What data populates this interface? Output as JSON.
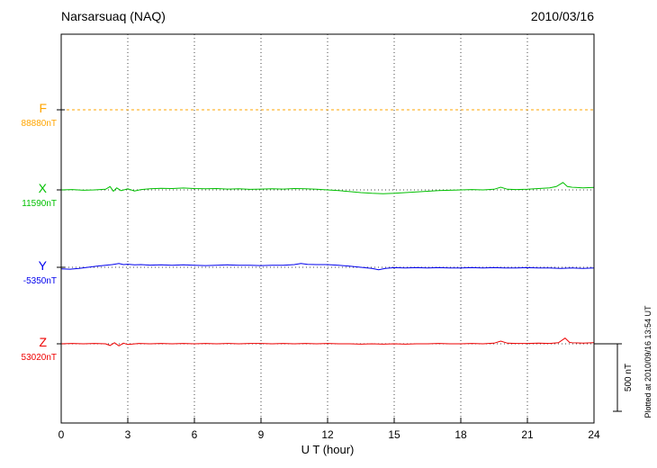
{
  "header": {
    "title": "Narsarsuaq (NAQ)",
    "date": "2010/03/16"
  },
  "chart_data": {
    "type": "line",
    "title": "Narsarsuaq (NAQ)",
    "date": "2010/03/16",
    "xlabel": "U T (hour)",
    "ylabel": "",
    "xlim": [
      0,
      24
    ],
    "xticks": [
      0,
      3,
      6,
      9,
      12,
      15,
      18,
      21,
      24
    ],
    "grid": "vertical-dotted",
    "scale_bar": {
      "label": "500 nT",
      "value_nT": 500
    },
    "plotted_note": "Plotted at 2010/09/16 13:54 UT",
    "series": [
      {
        "name": "F",
        "baseline": "88880nT",
        "color": "#FFA500",
        "line": "dotted",
        "points": [
          [
            0,
            0
          ],
          [
            24,
            0
          ]
        ]
      },
      {
        "name": "X",
        "baseline": "11590nT",
        "color": "#00C000",
        "line": "solid",
        "points": [
          [
            0,
            0
          ],
          [
            0.5,
            3
          ],
          [
            1,
            -3
          ],
          [
            1.5,
            0
          ],
          [
            2,
            5
          ],
          [
            2.2,
            25
          ],
          [
            2.35,
            -10
          ],
          [
            2.5,
            15
          ],
          [
            2.7,
            -5
          ],
          [
            3,
            8
          ],
          [
            3.3,
            -8
          ],
          [
            3.6,
            3
          ],
          [
            4,
            8
          ],
          [
            4.5,
            12
          ],
          [
            5,
            10
          ],
          [
            5.5,
            14
          ],
          [
            6,
            10
          ],
          [
            6.5,
            8
          ],
          [
            7,
            10
          ],
          [
            7.5,
            6
          ],
          [
            8,
            8
          ],
          [
            8.5,
            4
          ],
          [
            9,
            6
          ],
          [
            9.5,
            8
          ],
          [
            10,
            6
          ],
          [
            10.5,
            10
          ],
          [
            11,
            8
          ],
          [
            11.5,
            5
          ],
          [
            12,
            0
          ],
          [
            12.5,
            -5
          ],
          [
            13,
            -13
          ],
          [
            13.5,
            -20
          ],
          [
            14,
            -25
          ],
          [
            14.5,
            -28
          ],
          [
            15,
            -25
          ],
          [
            15.5,
            -20
          ],
          [
            16,
            -15
          ],
          [
            16.5,
            -10
          ],
          [
            17,
            -5
          ],
          [
            17.5,
            -3
          ],
          [
            18,
            0
          ],
          [
            18.5,
            3
          ],
          [
            19,
            0
          ],
          [
            19.5,
            5
          ],
          [
            19.8,
            20
          ],
          [
            20.1,
            5
          ],
          [
            20.5,
            3
          ],
          [
            21,
            5
          ],
          [
            21.5,
            10
          ],
          [
            22,
            15
          ],
          [
            22.3,
            25
          ],
          [
            22.6,
            55
          ],
          [
            22.8,
            25
          ],
          [
            23,
            20
          ],
          [
            23.5,
            15
          ],
          [
            24,
            18
          ]
        ]
      },
      {
        "name": "Y",
        "baseline": "-5350nT",
        "color": "#0000EE",
        "line": "solid",
        "points": [
          [
            0,
            -12
          ],
          [
            0.4,
            -14
          ],
          [
            0.8,
            -8
          ],
          [
            1.2,
            0
          ],
          [
            1.6,
            8
          ],
          [
            2,
            15
          ],
          [
            2.3,
            20
          ],
          [
            2.6,
            28
          ],
          [
            2.8,
            20
          ],
          [
            3,
            23
          ],
          [
            3.3,
            18
          ],
          [
            3.6,
            20
          ],
          [
            4,
            16
          ],
          [
            4.5,
            18
          ],
          [
            5,
            15
          ],
          [
            5.5,
            18
          ],
          [
            6,
            15
          ],
          [
            6.5,
            13
          ],
          [
            7,
            15
          ],
          [
            7.5,
            18
          ],
          [
            8,
            15
          ],
          [
            8.5,
            15
          ],
          [
            9,
            13
          ],
          [
            9.5,
            15
          ],
          [
            10,
            15
          ],
          [
            10.5,
            20
          ],
          [
            10.8,
            28
          ],
          [
            11.1,
            22
          ],
          [
            11.5,
            20
          ],
          [
            12,
            20
          ],
          [
            12.5,
            15
          ],
          [
            13,
            8
          ],
          [
            13.5,
            0
          ],
          [
            14,
            -8
          ],
          [
            14.3,
            -18
          ],
          [
            14.6,
            -8
          ],
          [
            15,
            -3
          ],
          [
            15.5,
            -5
          ],
          [
            16,
            -3
          ],
          [
            16.5,
            -5
          ],
          [
            17,
            -3
          ],
          [
            17.5,
            -5
          ],
          [
            18,
            -5
          ],
          [
            18.5,
            -3
          ],
          [
            19,
            -5
          ],
          [
            19.5,
            -3
          ],
          [
            20,
            -5
          ],
          [
            20.5,
            -5
          ],
          [
            21,
            -3
          ],
          [
            21.5,
            -5
          ],
          [
            22,
            -5
          ],
          [
            22.5,
            -8
          ],
          [
            23,
            -5
          ],
          [
            23.5,
            -8
          ],
          [
            24,
            -5
          ]
        ]
      },
      {
        "name": "Z",
        "baseline": "53020nT",
        "color": "#EE0000",
        "line": "solid",
        "points": [
          [
            0,
            0
          ],
          [
            0.5,
            3
          ],
          [
            1,
            0
          ],
          [
            1.5,
            3
          ],
          [
            2,
            0
          ],
          [
            2.2,
            -13
          ],
          [
            2.4,
            8
          ],
          [
            2.6,
            -15
          ],
          [
            2.8,
            5
          ],
          [
            3,
            -5
          ],
          [
            3.5,
            3
          ],
          [
            4,
            0
          ],
          [
            4.5,
            3
          ],
          [
            5,
            0
          ],
          [
            5.5,
            3
          ],
          [
            6,
            0
          ],
          [
            6.5,
            3
          ],
          [
            7,
            0
          ],
          [
            7.5,
            3
          ],
          [
            8,
            0
          ],
          [
            8.5,
            3
          ],
          [
            9,
            3
          ],
          [
            9.5,
            0
          ],
          [
            10,
            3
          ],
          [
            10.5,
            0
          ],
          [
            11,
            3
          ],
          [
            11.5,
            0
          ],
          [
            12,
            3
          ],
          [
            12.5,
            0
          ],
          [
            13,
            0
          ],
          [
            13.5,
            -3
          ],
          [
            14,
            0
          ],
          [
            14.5,
            -3
          ],
          [
            15,
            0
          ],
          [
            15.5,
            -3
          ],
          [
            16,
            0
          ],
          [
            16.5,
            0
          ],
          [
            17,
            3
          ],
          [
            17.5,
            0
          ],
          [
            18,
            0
          ],
          [
            18.5,
            3
          ],
          [
            19,
            0
          ],
          [
            19.5,
            5
          ],
          [
            19.8,
            20
          ],
          [
            20.1,
            5
          ],
          [
            20.5,
            3
          ],
          [
            21,
            3
          ],
          [
            21.5,
            5
          ],
          [
            22,
            3
          ],
          [
            22.4,
            8
          ],
          [
            22.7,
            42
          ],
          [
            22.9,
            10
          ],
          [
            23,
            8
          ],
          [
            23.5,
            5
          ],
          [
            24,
            8
          ]
        ]
      }
    ]
  }
}
